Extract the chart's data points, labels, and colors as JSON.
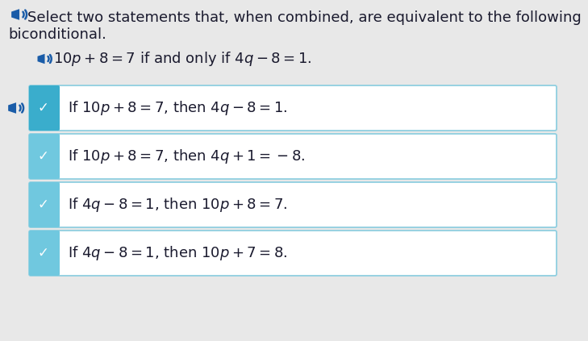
{
  "bg_color": "#e8e8e8",
  "box_bg": "#ffffff",
  "box_border": "#90cfe0",
  "tab_color_1": "#3aadcc",
  "tab_color_other": "#70c8df",
  "check_color": "#ffffff",
  "speaker_color": "#1a5ca8",
  "text_color": "#1a1a2e",
  "font_size_header": 13,
  "font_size_option": 13,
  "font_size_bicond": 13,
  "header_line1": "Select two statements that, when combined, are equivalent to the following",
  "header_line2": "biconditional.",
  "bicond_text_pre": "10",
  "bicond_text_post": " + 8 = 7 if and only if 4",
  "bicond_text_end": " − 8 = 1.",
  "option_rows": [
    {
      "pre": "If 10",
      "var1": "p",
      "mid": " + 8 = 7, then 4",
      "var2": "q",
      "post": " − 8 = 1."
    },
    {
      "pre": "If 10",
      "var1": "p",
      "mid": " + 8 = 7, then 4",
      "var2": "q",
      "post": " + 1 = −8."
    },
    {
      "pre": "If 4",
      "var1": "q",
      "mid": " − 8 = 1, then 10",
      "var2": "p",
      "post": " + 8 = 7."
    },
    {
      "pre": "If 4",
      "var1": "q",
      "mid": " − 8 = 1, then 10",
      "var2": "p",
      "post": " + 7 = 8."
    }
  ]
}
